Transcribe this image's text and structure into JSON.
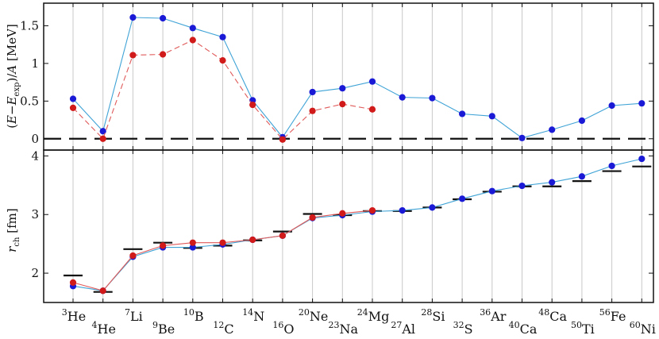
{
  "chart_data": [
    {
      "type": "line",
      "panel": "top",
      "ylabel": "(E−E_exp)/A [MeV]",
      "ylabel_parts": {
        "pre": "(",
        "E1": "E",
        "minus": "−",
        "E2": "E",
        "sub": "exp",
        "post": ")/",
        "A": "A",
        "unit": " [MeV]"
      },
      "ylim": [
        -0.15,
        1.8
      ],
      "yticks": [
        0,
        0.5,
        1,
        1.5
      ],
      "ytick_labels": [
        "0",
        "0.5",
        "1",
        "1.5"
      ],
      "reference_line": 0,
      "series": [
        {
          "color": "#1a1ad6",
          "line_color": "#3fa3d6",
          "line_style": "solid",
          "values": [
            0.53,
            0.1,
            1.61,
            1.6,
            1.47,
            1.35,
            0.51,
            0.02,
            0.62,
            0.67,
            0.76,
            0.55,
            0.54,
            0.33,
            0.3,
            0.01,
            0.12,
            0.24,
            0.44,
            0.47
          ]
        },
        {
          "color": "#d11a1a",
          "line_color": "#e05a5a",
          "line_style": "dashed",
          "values": [
            0.41,
            0.0,
            1.11,
            1.12,
            1.31,
            1.04,
            0.45,
            -0.01,
            0.37,
            0.46,
            0.39,
            null,
            null,
            null,
            null,
            null,
            null,
            null,
            null,
            null
          ]
        }
      ]
    },
    {
      "type": "line",
      "panel": "bottom",
      "ylabel": "r_ch [fm]",
      "ylabel_parts": {
        "r": "r",
        "sub": "ch",
        "unit": " [fm]"
      },
      "ylim": [
        1.5,
        4.1
      ],
      "yticks": [
        2,
        3,
        4
      ],
      "ytick_labels": [
        "2",
        "3",
        "4"
      ],
      "experiment_values": [
        1.96,
        1.68,
        2.41,
        2.52,
        2.43,
        2.47,
        2.56,
        2.71,
        3.01,
        2.99,
        3.06,
        3.06,
        3.12,
        3.26,
        3.39,
        3.48,
        3.48,
        3.57,
        3.74,
        3.82
      ],
      "series": [
        {
          "color": "#1a1ad6",
          "line_color": "#3fa3d6",
          "values": [
            1.78,
            1.7,
            2.28,
            2.44,
            2.44,
            2.49,
            2.57,
            2.64,
            2.94,
            2.99,
            3.05,
            3.07,
            3.12,
            3.27,
            3.4,
            3.49,
            3.55,
            3.65,
            3.83,
            3.95
          ]
        },
        {
          "color": "#d11a1a",
          "line_color": "#e05a5a",
          "values": [
            1.84,
            1.7,
            2.3,
            2.47,
            2.52,
            2.52,
            2.57,
            2.64,
            2.95,
            3.02,
            3.07,
            null,
            null,
            null,
            null,
            null,
            null,
            null,
            null,
            null
          ]
        }
      ]
    }
  ],
  "nuclei": [
    {
      "mass": "3",
      "el": "He"
    },
    {
      "mass": "4",
      "el": "He"
    },
    {
      "mass": "7",
      "el": "Li"
    },
    {
      "mass": "9",
      "el": "Be"
    },
    {
      "mass": "10",
      "el": "B"
    },
    {
      "mass": "12",
      "el": "C"
    },
    {
      "mass": "14",
      "el": "N"
    },
    {
      "mass": "16",
      "el": "O"
    },
    {
      "mass": "20",
      "el": "Ne"
    },
    {
      "mass": "23",
      "el": "Na"
    },
    {
      "mass": "24",
      "el": "Mg"
    },
    {
      "mass": "27",
      "el": "Al"
    },
    {
      "mass": "28",
      "el": "Si"
    },
    {
      "mass": "32",
      "el": "S"
    },
    {
      "mass": "36",
      "el": "Ar"
    },
    {
      "mass": "40",
      "el": "Ca"
    },
    {
      "mass": "48",
      "el": "Ca"
    },
    {
      "mass": "50",
      "el": "Ti"
    },
    {
      "mass": "56",
      "el": "Fe"
    },
    {
      "mass": "60",
      "el": "Ni"
    }
  ],
  "grid": "vertical"
}
